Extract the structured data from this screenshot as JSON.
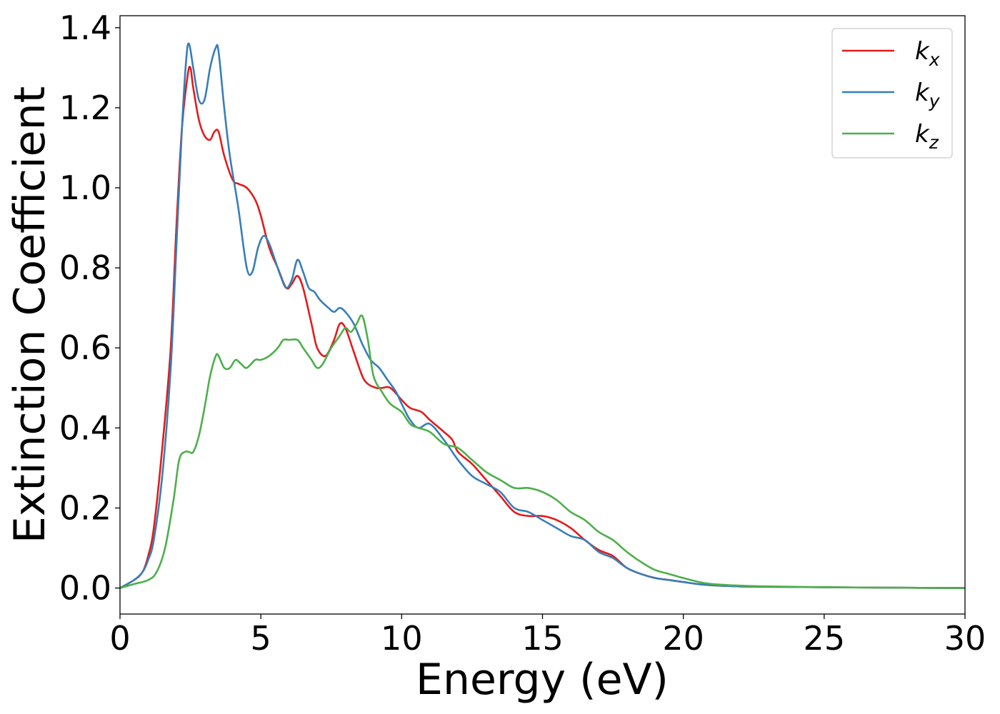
{
  "chart_data": {
    "type": "line",
    "title": "",
    "xlabel": "Energy (eV)",
    "ylabel": "Extinction Coefficient",
    "xlim": [
      0,
      30
    ],
    "ylim": [
      -0.065,
      1.43
    ],
    "xticks": [
      0,
      5,
      10,
      15,
      20,
      25,
      30
    ],
    "yticks": [
      0.0,
      0.2,
      0.4,
      0.6,
      0.8,
      1.0,
      1.2,
      1.4
    ],
    "xtick_labels": [
      "0",
      "5",
      "10",
      "15",
      "20",
      "25",
      "30"
    ],
    "ytick_labels": [
      "0.0",
      "0.2",
      "0.4",
      "0.6",
      "0.8",
      "1.0",
      "1.2",
      "1.4"
    ],
    "grid": false,
    "legend_position": "top-right",
    "series": [
      {
        "name": "k_x",
        "label_base": "k",
        "label_sub": "x",
        "color": "#e41a1c",
        "x": [
          0,
          0.5,
          0.8,
          1.0,
          1.2,
          1.5,
          1.8,
          2.0,
          2.2,
          2.4,
          2.5,
          2.6,
          2.8,
          3.0,
          3.2,
          3.35,
          3.5,
          3.7,
          4.0,
          4.2,
          4.5,
          4.8,
          5.0,
          5.3,
          5.6,
          5.9,
          6.1,
          6.3,
          6.5,
          6.8,
          7.0,
          7.3,
          7.6,
          7.8,
          8.0,
          8.3,
          8.6,
          8.8,
          9.1,
          9.3,
          9.6,
          10.0,
          10.3,
          10.7,
          11.0,
          11.5,
          11.8,
          12.0,
          12.5,
          13.0,
          13.5,
          14.0,
          14.5,
          15.0,
          15.5,
          16.0,
          16.5,
          17.0,
          17.5,
          18.0,
          18.5,
          19.0,
          19.5,
          20.0,
          20.5,
          21.0,
          22.0,
          23.0,
          25.0,
          27.0,
          30.0
        ],
        "y": [
          0,
          0.02,
          0.04,
          0.08,
          0.15,
          0.35,
          0.6,
          0.9,
          1.15,
          1.28,
          1.3,
          1.25,
          1.17,
          1.13,
          1.12,
          1.14,
          1.14,
          1.08,
          1.02,
          1.01,
          1.0,
          0.97,
          0.93,
          0.85,
          0.8,
          0.75,
          0.76,
          0.78,
          0.75,
          0.66,
          0.6,
          0.58,
          0.62,
          0.66,
          0.65,
          0.59,
          0.53,
          0.51,
          0.5,
          0.5,
          0.5,
          0.47,
          0.45,
          0.44,
          0.42,
          0.39,
          0.37,
          0.34,
          0.31,
          0.27,
          0.23,
          0.19,
          0.18,
          0.18,
          0.17,
          0.15,
          0.12,
          0.095,
          0.08,
          0.05,
          0.035,
          0.025,
          0.02,
          0.015,
          0.01,
          0.007,
          0.004,
          0.003,
          0.002,
          0.001,
          0.0
        ]
      },
      {
        "name": "k_y",
        "label_base": "k",
        "label_sub": "y",
        "color": "#377eb8",
        "x": [
          0,
          0.5,
          0.8,
          1.0,
          1.2,
          1.5,
          1.8,
          2.0,
          2.2,
          2.35,
          2.45,
          2.6,
          2.8,
          3.0,
          3.2,
          3.4,
          3.5,
          3.7,
          3.9,
          4.2,
          4.5,
          4.7,
          4.9,
          5.1,
          5.3,
          5.5,
          5.7,
          5.9,
          6.1,
          6.3,
          6.5,
          6.7,
          6.9,
          7.1,
          7.4,
          7.6,
          7.8,
          8.0,
          8.3,
          8.6,
          8.9,
          9.2,
          9.5,
          9.8,
          10.0,
          10.3,
          10.6,
          11.0,
          11.5,
          12.0,
          12.5,
          13.0,
          13.5,
          14.0,
          14.5,
          15.0,
          15.5,
          16.0,
          16.5,
          17.0,
          17.5,
          18.0,
          18.5,
          19.0,
          19.5,
          20.0,
          20.5,
          21.0,
          22.0,
          23.0,
          25.0,
          27.0,
          30.0
        ],
        "y": [
          0,
          0.02,
          0.04,
          0.07,
          0.12,
          0.28,
          0.55,
          0.85,
          1.15,
          1.32,
          1.36,
          1.3,
          1.22,
          1.22,
          1.3,
          1.35,
          1.34,
          1.2,
          1.08,
          0.95,
          0.8,
          0.79,
          0.85,
          0.88,
          0.86,
          0.82,
          0.78,
          0.75,
          0.77,
          0.82,
          0.79,
          0.75,
          0.74,
          0.72,
          0.7,
          0.69,
          0.7,
          0.69,
          0.66,
          0.61,
          0.57,
          0.55,
          0.52,
          0.49,
          0.46,
          0.42,
          0.4,
          0.41,
          0.37,
          0.32,
          0.28,
          0.26,
          0.24,
          0.2,
          0.19,
          0.17,
          0.15,
          0.13,
          0.12,
          0.09,
          0.075,
          0.05,
          0.035,
          0.025,
          0.02,
          0.015,
          0.01,
          0.007,
          0.004,
          0.003,
          0.002,
          0.001,
          0.0
        ]
      },
      {
        "name": "k_z",
        "label_base": "k",
        "label_sub": "z",
        "color": "#4daf4a",
        "x": [
          0,
          0.5,
          1.0,
          1.3,
          1.6,
          1.9,
          2.1,
          2.3,
          2.45,
          2.6,
          2.8,
          3.0,
          3.2,
          3.4,
          3.5,
          3.7,
          3.9,
          4.1,
          4.3,
          4.5,
          4.8,
          5.0,
          5.3,
          5.6,
          5.8,
          6.0,
          6.3,
          6.5,
          6.8,
          7.0,
          7.2,
          7.5,
          7.8,
          8.0,
          8.2,
          8.4,
          8.6,
          8.8,
          9.0,
          9.3,
          9.6,
          10.0,
          10.3,
          10.6,
          11.0,
          11.5,
          12.0,
          12.5,
          13.0,
          13.5,
          14.0,
          14.5,
          15.0,
          15.5,
          16.0,
          16.5,
          17.0,
          17.5,
          18.0,
          18.5,
          19.0,
          19.5,
          20.0,
          20.5,
          21.0,
          22.0,
          23.0,
          25.0,
          27.0,
          30.0
        ],
        "y": [
          0,
          0.01,
          0.02,
          0.04,
          0.1,
          0.22,
          0.32,
          0.34,
          0.34,
          0.34,
          0.38,
          0.45,
          0.53,
          0.58,
          0.58,
          0.55,
          0.55,
          0.57,
          0.56,
          0.55,
          0.57,
          0.57,
          0.58,
          0.6,
          0.62,
          0.62,
          0.62,
          0.6,
          0.57,
          0.55,
          0.56,
          0.6,
          0.63,
          0.65,
          0.64,
          0.66,
          0.68,
          0.62,
          0.53,
          0.49,
          0.46,
          0.44,
          0.41,
          0.4,
          0.39,
          0.36,
          0.35,
          0.32,
          0.29,
          0.27,
          0.25,
          0.25,
          0.24,
          0.22,
          0.19,
          0.17,
          0.14,
          0.12,
          0.09,
          0.065,
          0.045,
          0.035,
          0.025,
          0.016,
          0.01,
          0.006,
          0.004,
          0.002,
          0.001,
          0.0
        ]
      }
    ]
  }
}
